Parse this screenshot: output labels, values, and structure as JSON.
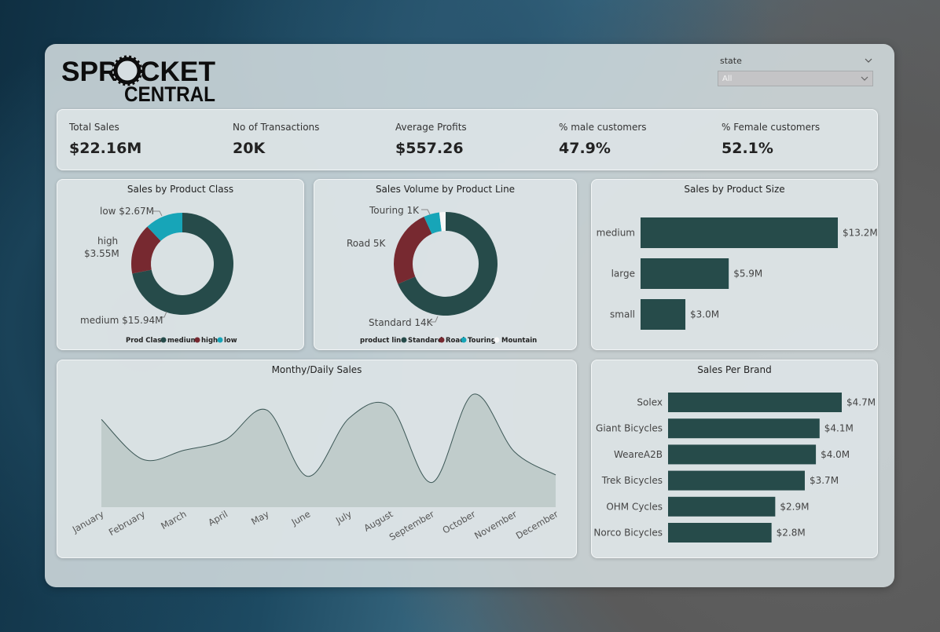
{
  "header": {
    "logo_line1": "SPROCKET",
    "logo_line2": "CENTRAL"
  },
  "slicer": {
    "title": "state",
    "value": "All"
  },
  "kpis": [
    {
      "label": "Total Sales",
      "value": "$22.16M"
    },
    {
      "label": "No of Transactions",
      "value": "20K"
    },
    {
      "label": "Average Profits",
      "value": "$557.26"
    },
    {
      "label": "% male customers",
      "value": "47.9%"
    },
    {
      "label": "% Female customers",
      "value": "52.1%"
    }
  ],
  "colors": {
    "dark_teal": "#264b4a",
    "maroon": "#772930",
    "cyan": "#17a5b8",
    "white": "#f7f7f7"
  },
  "chart_data": [
    {
      "type": "pie",
      "title": "Sales by Product Class",
      "legend_title": "Prod Class",
      "slices": [
        {
          "label": "medium",
          "value": 15.94,
          "display": "medium $15.94M",
          "color": "#264b4a"
        },
        {
          "label": "high",
          "value": 3.55,
          "display_line1": "high",
          "display_line2": "$3.55M",
          "color": "#772930"
        },
        {
          "label": "low",
          "value": 2.67,
          "display": "low $2.67M",
          "color": "#17a5b8"
        }
      ]
    },
    {
      "type": "pie",
      "title": "Sales Volume by Product Line",
      "legend_title": "product line",
      "slices": [
        {
          "label": "Standard",
          "value": 14,
          "display": "Standard 14K",
          "color": "#264b4a"
        },
        {
          "label": "Road",
          "value": 5,
          "display": "Road 5K",
          "color": "#772930"
        },
        {
          "label": "Touring",
          "value": 1,
          "display": "Touring 1K",
          "color": "#17a5b8"
        },
        {
          "label": "Mountain",
          "value": 0.4,
          "display": "",
          "color": "#f7f7f7"
        }
      ]
    },
    {
      "type": "bar",
      "orientation": "horizontal",
      "title": "Sales by Product Size",
      "categories": [
        "medium",
        "large",
        "small"
      ],
      "values": [
        13.2,
        5.9,
        3.0
      ],
      "labels": [
        "$13.2M",
        "$5.9M",
        "$3.0M"
      ],
      "xlim": [
        0,
        13.2
      ]
    },
    {
      "type": "area",
      "title": "Monthy/Daily Sales",
      "categories": [
        "January",
        "February",
        "March",
        "April",
        "May",
        "June",
        "July",
        "August",
        "September",
        "October",
        "November",
        "December"
      ],
      "values": [
        1.85,
        1.01,
        1.2,
        1.42,
        2.05,
        0.65,
        1.88,
        2.12,
        0.52,
        2.38,
        1.17,
        0.68
      ]
    },
    {
      "type": "bar",
      "orientation": "horizontal",
      "title": "Sales Per Brand",
      "categories": [
        "Solex",
        "Giant Bicycles",
        "WeareA2B",
        "Trek Bicycles",
        "OHM Cycles",
        "Norco Bicycles"
      ],
      "values": [
        4.7,
        4.1,
        4.0,
        3.7,
        2.9,
        2.8
      ],
      "labels": [
        "$4.7M",
        "$4.1M",
        "$4.0M",
        "$3.7M",
        "$2.9M",
        "$2.8M"
      ],
      "xlim": [
        0,
        4.7
      ]
    }
  ]
}
